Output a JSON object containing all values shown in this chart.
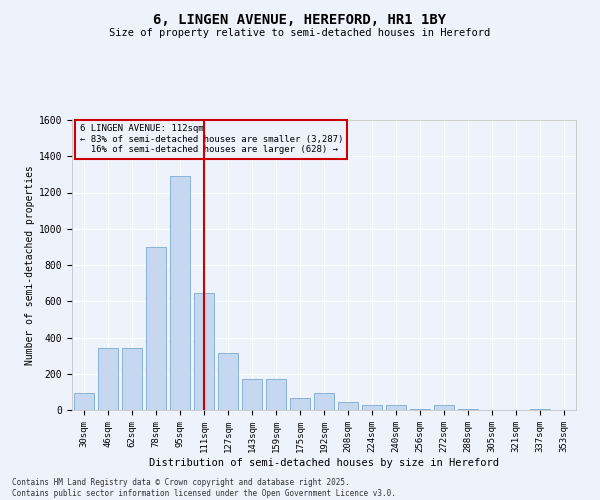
{
  "title": "6, LINGEN AVENUE, HEREFORD, HR1 1BY",
  "subtitle": "Size of property relative to semi-detached houses in Hereford",
  "xlabel": "Distribution of semi-detached houses by size in Hereford",
  "ylabel": "Number of semi-detached properties",
  "categories": [
    "30sqm",
    "46sqm",
    "62sqm",
    "78sqm",
    "95sqm",
    "111sqm",
    "127sqm",
    "143sqm",
    "159sqm",
    "175sqm",
    "192sqm",
    "208sqm",
    "224sqm",
    "240sqm",
    "256sqm",
    "272sqm",
    "288sqm",
    "305sqm",
    "321sqm",
    "337sqm",
    "353sqm"
  ],
  "values": [
    95,
    340,
    340,
    900,
    1290,
    645,
    315,
    170,
    170,
    65,
    95,
    45,
    28,
    28,
    5,
    28,
    5,
    0,
    0,
    5,
    0
  ],
  "bar_color": "#c5d8f0",
  "bar_edge_color": "#7aaad4",
  "vline_x_idx": 5,
  "vline_color": "#cc0000",
  "property_label": "6 LINGEN AVENUE: 112sqm",
  "smaller_pct": 83,
  "smaller_count": 3287,
  "larger_pct": 16,
  "larger_count": 628,
  "ylim": [
    0,
    1600
  ],
  "yticks": [
    0,
    200,
    400,
    600,
    800,
    1000,
    1200,
    1400,
    1600
  ],
  "annotation_box_color": "#cc0000",
  "background_color": "#eef2fb",
  "grid_color": "#ffffff",
  "footer": "Contains HM Land Registry data © Crown copyright and database right 2025.\nContains public sector information licensed under the Open Government Licence v3.0."
}
